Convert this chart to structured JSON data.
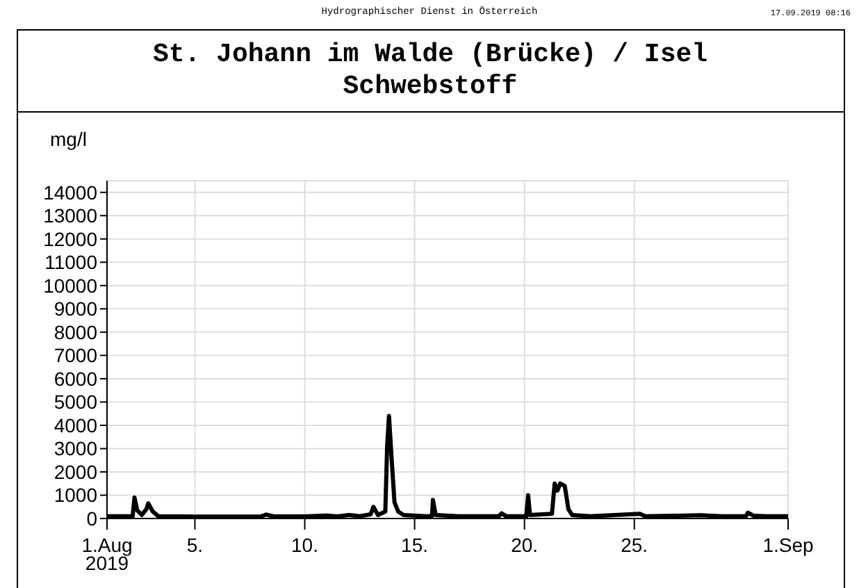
{
  "chart_data": {
    "type": "line",
    "title": "St. Johann im Walde (Brücke) / Isel",
    "subtitle": "Schwebstoff",
    "ylabel": "mg/l",
    "annotations": [
      "Hydrographischer Dienst in Österreich",
      "17.09.2019 08:16"
    ],
    "x": [
      "2019-08-01T00:00",
      "2019-08-02T04:00",
      "2019-08-02T06:00",
      "2019-08-02T09:00",
      "2019-08-02T14:00",
      "2019-08-02T19:00",
      "2019-08-02T21:00",
      "2019-08-03T02:00",
      "2019-08-03T08:00",
      "2019-08-05T00:00",
      "2019-08-08T00:00",
      "2019-08-08T06:00",
      "2019-08-08T14:00",
      "2019-08-10T00:00",
      "2019-08-11T00:00",
      "2019-08-11T12:00",
      "2019-08-12T00:00",
      "2019-08-12T12:00",
      "2019-08-13T00:00",
      "2019-08-13T03:00",
      "2019-08-13T08:00",
      "2019-08-13T16:00",
      "2019-08-13T18:00",
      "2019-08-13T20:00",
      "2019-08-13T23:00",
      "2019-08-14T02:00",
      "2019-08-14T06:00",
      "2019-08-14T12:00",
      "2019-08-15T12:00",
      "2019-08-15T19:00",
      "2019-08-15T20:00",
      "2019-08-15T23:00",
      "2019-08-17T00:00",
      "2019-08-18T20:00",
      "2019-08-18T23:00",
      "2019-08-19T04:00",
      "2019-08-20T02:00",
      "2019-08-20T04:00",
      "2019-08-20T06:00",
      "2019-08-21T06:00",
      "2019-08-21T09:00",
      "2019-08-21T12:00",
      "2019-08-21T15:00",
      "2019-08-21T20:00",
      "2019-08-22T00:00",
      "2019-08-22T04:00",
      "2019-08-23T00:00",
      "2019-08-25T06:00",
      "2019-08-25T12:00",
      "2019-08-27T00:00",
      "2019-08-28T00:00",
      "2019-08-29T00:00",
      "2019-08-30T02:00",
      "2019-08-30T04:00",
      "2019-08-30T10:00",
      "2019-08-31T00:00",
      "2019-09-01T00:00"
    ],
    "series": [
      {
        "color": "#000000",
        "values": [
          100,
          100,
          900,
          350,
          150,
          400,
          650,
          300,
          100,
          80,
          90,
          170,
          90,
          90,
          130,
          90,
          150,
          100,
          180,
          500,
          150,
          300,
          3100,
          4400,
          2500,
          700,
          300,
          150,
          100,
          100,
          800,
          150,
          100,
          100,
          220,
          100,
          100,
          1000,
          150,
          200,
          1500,
          1200,
          1500,
          1400,
          400,
          150,
          100,
          200,
          100,
          120,
          140,
          100,
          100,
          250,
          120,
          100,
          100
        ]
      }
    ],
    "xlim": [
      "2019-08-01",
      "2019-09-01"
    ],
    "xticks": [
      {
        "value": "2019-08-01",
        "label": "1.Aug\n2019"
      },
      {
        "value": "2019-08-05",
        "label": "5."
      },
      {
        "value": "2019-08-10",
        "label": "10."
      },
      {
        "value": "2019-08-15",
        "label": "15."
      },
      {
        "value": "2019-08-20",
        "label": "20."
      },
      {
        "value": "2019-08-25",
        "label": "25."
      },
      {
        "value": "2019-09-01",
        "label": "1.Sep"
      }
    ],
    "ylim": [
      0,
      14500
    ],
    "yticks": [
      0,
      1000,
      2000,
      3000,
      4000,
      5000,
      6000,
      7000,
      8000,
      9000,
      10000,
      11000,
      12000,
      13000,
      14000
    ],
    "grid": true
  }
}
